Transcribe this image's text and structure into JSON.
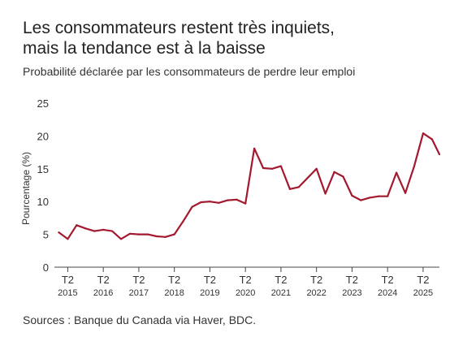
{
  "title_line1": "Les consommateurs restent très inquiets,",
  "title_line2": "mais la tendance est à la baisse",
  "subtitle": "Probabilité déclarée par les consommateurs de perdre leur emploi",
  "source": "Sources : Banque du Canada via Haver, BDC.",
  "colors": {
    "line": "#a3192f",
    "axis": "#444444"
  },
  "chart_data": {
    "type": "line",
    "ylabel": "Pourcentage (%)",
    "ylim": [
      0,
      25
    ],
    "yticks": [
      0,
      5,
      10,
      15,
      20,
      25
    ],
    "xlim": [
      2015.0,
      2025.833
    ],
    "xticks": [
      {
        "top": "T2",
        "bottom": "2015",
        "x": 2015.375
      },
      {
        "top": "T2",
        "bottom": "2016",
        "x": 2016.375
      },
      {
        "top": "T2",
        "bottom": "2017",
        "x": 2017.375
      },
      {
        "top": "T2",
        "bottom": "2018",
        "x": 2018.375
      },
      {
        "top": "T2",
        "bottom": "2019",
        "x": 2019.375
      },
      {
        "top": "T2",
        "bottom": "2020",
        "x": 2020.375
      },
      {
        "top": "T2",
        "bottom": "2021",
        "x": 2021.375
      },
      {
        "top": "T2",
        "bottom": "2022",
        "x": 2022.375
      },
      {
        "top": "T2",
        "bottom": "2023",
        "x": 2023.375
      },
      {
        "top": "T2",
        "bottom": "2024",
        "x": 2024.375
      },
      {
        "top": "T2",
        "bottom": "2025",
        "x": 2025.375
      }
    ],
    "series": [
      {
        "points": [
          [
            2015.125,
            5.3
          ],
          [
            2015.375,
            4.3
          ],
          [
            2015.625,
            6.4
          ],
          [
            2015.875,
            5.9
          ],
          [
            2016.125,
            5.5
          ],
          [
            2016.375,
            5.7
          ],
          [
            2016.625,
            5.5
          ],
          [
            2016.875,
            4.3
          ],
          [
            2017.125,
            5.1
          ],
          [
            2017.375,
            5.0
          ],
          [
            2017.625,
            5.0
          ],
          [
            2017.875,
            4.7
          ],
          [
            2018.125,
            4.6
          ],
          [
            2018.375,
            5.0
          ],
          [
            2018.625,
            7.0
          ],
          [
            2018.875,
            9.2
          ],
          [
            2019.125,
            9.9
          ],
          [
            2019.375,
            10.0
          ],
          [
            2019.625,
            9.8
          ],
          [
            2019.875,
            10.2
          ],
          [
            2020.125,
            10.3
          ],
          [
            2020.375,
            9.7
          ],
          [
            2020.625,
            18.1
          ],
          [
            2020.875,
            15.1
          ],
          [
            2021.125,
            15.0
          ],
          [
            2021.375,
            15.4
          ],
          [
            2021.625,
            11.9
          ],
          [
            2021.875,
            12.2
          ],
          [
            2022.375,
            15.0
          ],
          [
            2022.625,
            11.2
          ],
          [
            2022.875,
            14.5
          ],
          [
            2023.125,
            13.8
          ],
          [
            2023.375,
            10.9
          ],
          [
            2023.625,
            10.2
          ],
          [
            2023.875,
            10.6
          ],
          [
            2024.125,
            10.8
          ],
          [
            2024.375,
            10.8
          ],
          [
            2024.625,
            14.4
          ],
          [
            2024.875,
            11.3
          ],
          [
            2025.125,
            15.4
          ],
          [
            2025.375,
            20.4
          ],
          [
            2025.625,
            19.5
          ],
          [
            2025.833,
            17.2
          ]
        ]
      }
    ]
  }
}
